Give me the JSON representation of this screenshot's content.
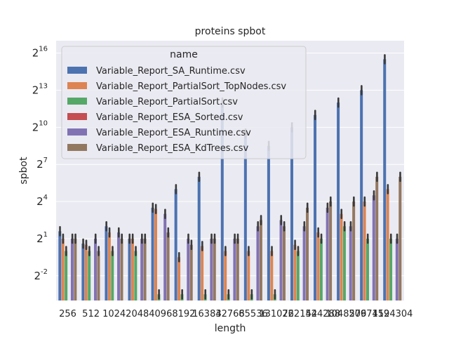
{
  "chart_data": {
    "type": "bar",
    "title": "proteins spbot",
    "xlabel": "length",
    "ylabel": "spbot",
    "yscale": "log2",
    "ylim_exp": [
      -4,
      17
    ],
    "yticks": [
      {
        "base": "2",
        "exp": "16",
        "value": 16
      },
      {
        "base": "2",
        "exp": "13",
        "value": 13
      },
      {
        "base": "2",
        "exp": "10",
        "value": 10
      },
      {
        "base": "2",
        "exp": "7",
        "value": 7
      },
      {
        "base": "2",
        "exp": "4",
        "value": 4
      },
      {
        "base": "2",
        "exp": "1",
        "value": 1
      },
      {
        "base": "2",
        "exp": "-2",
        "value": -2
      }
    ],
    "categories": [
      "256",
      "512",
      "1024",
      "2048",
      "4096",
      "8192",
      "16384",
      "32768",
      "65536",
      "131072",
      "262144",
      "524288",
      "1048576",
      "2097152",
      "4194304"
    ],
    "legend": {
      "title": "name",
      "position": "upper-left"
    },
    "grid": true,
    "series": [
      {
        "name": "Variable_Report_SA_Runtime.csv",
        "color": "#4c72b0",
        "values": [
          1.6,
          0.6,
          2.0,
          1.0,
          3.5,
          5.0,
          6.0,
          12.0,
          9.5,
          8.5,
          10.0,
          11.0,
          12.0,
          13.0,
          15.5
        ]
      },
      {
        "name": "Variable_Report_PartialSort_TopNodes.csv",
        "color": "#dd8452",
        "values": [
          1.0,
          0.5,
          1.5,
          1.0,
          3.4,
          -0.5,
          0.4,
          0.0,
          0.0,
          0.0,
          0.5,
          1.5,
          3.0,
          4.0,
          5.0
        ]
      },
      {
        "name": "Variable_Report_PartialSort.csv",
        "color": "#55a868",
        "values": [
          0.0,
          0.0,
          0.0,
          0.0,
          -3.5,
          -3.5,
          -3.5,
          -3.5,
          -3.5,
          -3.5,
          0.0,
          1.0,
          2.0,
          1.0,
          1.0
        ]
      },
      {
        "name": "Variable_Report_ESA_Sorted.csv",
        "color": "#c44e52",
        "values": [
          null,
          null,
          null,
          null,
          null,
          null,
          null,
          null,
          null,
          null,
          null,
          null,
          null,
          null,
          null
        ]
      },
      {
        "name": "Variable_Report_ESA_Runtime.csv",
        "color": "#8172b3",
        "values": [
          1.0,
          1.0,
          1.5,
          1.0,
          3.0,
          1.0,
          1.0,
          1.0,
          2.0,
          2.5,
          2.0,
          3.5,
          2.0,
          4.5,
          1.0
        ]
      },
      {
        "name": "Variable_Report_ESA_KdTrees.csv",
        "color": "#937860",
        "values": [
          1.0,
          0.0,
          1.0,
          1.0,
          1.5,
          0.5,
          1.0,
          1.0,
          2.5,
          2.0,
          3.5,
          4.0,
          4.0,
          6.0,
          6.0
        ]
      }
    ]
  }
}
